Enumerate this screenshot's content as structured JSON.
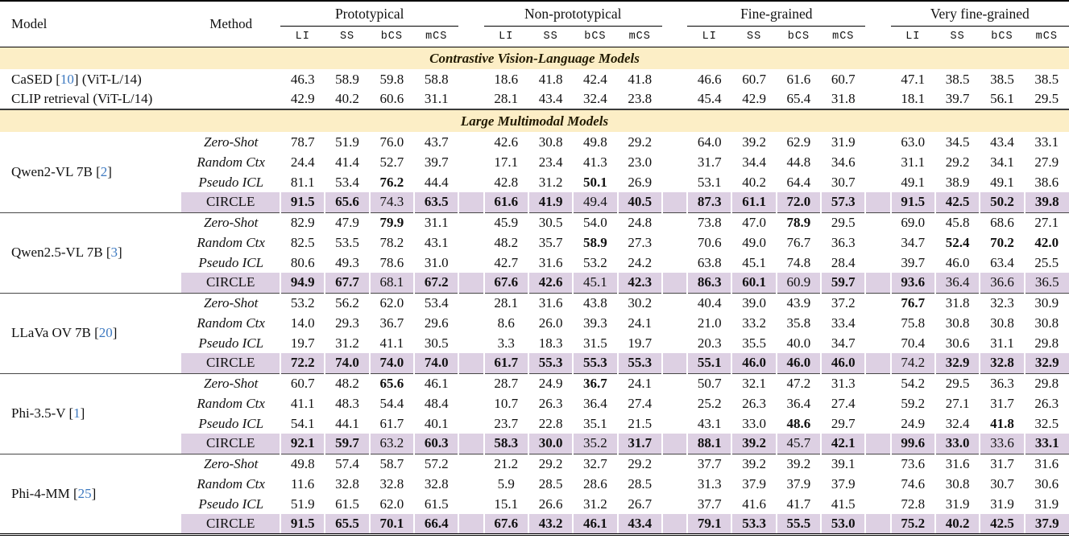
{
  "colors": {
    "section_band": "#FCEEC6",
    "circle_band": "#DDD0E3",
    "cite_blue": "#3D79C0"
  },
  "table": {
    "model_header": "Model",
    "method_header": "Method",
    "groups": [
      {
        "label": "Prototypical"
      },
      {
        "label": "Non-prototypical"
      },
      {
        "label": "Fine-grained"
      },
      {
        "label": "Very fine-grained"
      }
    ],
    "subcols": [
      "LI",
      "SS",
      "bCS",
      "mCS"
    ],
    "sections": [
      {
        "title": "Contrastive Vision-Language Models",
        "blocks": [
          {
            "model_pre": "CaSED [",
            "model_cite": "10",
            "model_post": "] (ViT-L/14)",
            "rows": [
              {
                "method": "",
                "italic": false,
                "circle": false,
                "values": [
                  "46.3",
                  "58.9",
                  "59.8",
                  "58.8",
                  "18.6",
                  "41.8",
                  "42.4",
                  "41.8",
                  "46.6",
                  "60.7",
                  "61.6",
                  "60.7",
                  "47.1",
                  "38.5",
                  "38.5",
                  "38.5"
                ],
                "bold": []
              }
            ]
          },
          {
            "model_pre": "CLIP retrieval (ViT-L/14)",
            "model_cite": "",
            "model_post": "",
            "rows": [
              {
                "method": "",
                "italic": false,
                "circle": false,
                "values": [
                  "42.9",
                  "40.2",
                  "60.6",
                  "31.1",
                  "28.1",
                  "43.4",
                  "32.4",
                  "23.8",
                  "45.4",
                  "42.9",
                  "65.4",
                  "31.8",
                  "18.1",
                  "39.7",
                  "56.1",
                  "29.5"
                ],
                "bold": []
              }
            ]
          }
        ]
      },
      {
        "title": "Large Multimodal Models",
        "blocks": [
          {
            "model_pre": "Qwen2-VL 7B [",
            "model_cite": "2",
            "model_post": "]",
            "rows": [
              {
                "method": "Zero-Shot",
                "italic": true,
                "circle": false,
                "values": [
                  "78.7",
                  "51.9",
                  "76.0",
                  "43.7",
                  "42.6",
                  "30.8",
                  "49.8",
                  "29.2",
                  "64.0",
                  "39.2",
                  "62.9",
                  "31.9",
                  "63.0",
                  "34.5",
                  "43.4",
                  "33.1"
                ],
                "bold": []
              },
              {
                "method": "Random Ctx",
                "italic": true,
                "circle": false,
                "values": [
                  "24.4",
                  "41.4",
                  "52.7",
                  "39.7",
                  "17.1",
                  "23.4",
                  "41.3",
                  "23.0",
                  "31.7",
                  "34.4",
                  "44.8",
                  "34.6",
                  "31.1",
                  "29.2",
                  "34.1",
                  "27.9"
                ],
                "bold": []
              },
              {
                "method": "Pseudo ICL",
                "italic": true,
                "circle": false,
                "values": [
                  "81.1",
                  "53.4",
                  "76.2",
                  "44.4",
                  "42.8",
                  "31.2",
                  "50.1",
                  "26.9",
                  "53.1",
                  "40.2",
                  "64.4",
                  "30.7",
                  "49.1",
                  "38.9",
                  "49.1",
                  "38.6"
                ],
                "bold": [
                  2,
                  6
                ]
              },
              {
                "method": "CIRCLE",
                "italic": false,
                "circle": true,
                "values": [
                  "91.5",
                  "65.6",
                  "74.3",
                  "63.5",
                  "61.6",
                  "41.9",
                  "49.4",
                  "40.5",
                  "87.3",
                  "61.1",
                  "72.0",
                  "57.3",
                  "91.5",
                  "42.5",
                  "50.2",
                  "39.8"
                ],
                "bold": [
                  0,
                  1,
                  3,
                  4,
                  5,
                  7,
                  8,
                  9,
                  10,
                  11,
                  12,
                  13,
                  14,
                  15
                ]
              }
            ]
          },
          {
            "model_pre": "Qwen2.5-VL 7B [",
            "model_cite": "3",
            "model_post": "]",
            "rows": [
              {
                "method": "Zero-Shot",
                "italic": true,
                "circle": false,
                "values": [
                  "82.9",
                  "47.9",
                  "79.9",
                  "31.1",
                  "45.9",
                  "30.5",
                  "54.0",
                  "24.8",
                  "73.8",
                  "47.0",
                  "78.9",
                  "29.5",
                  "69.0",
                  "45.8",
                  "68.6",
                  "27.1"
                ],
                "bold": [
                  2,
                  10
                ]
              },
              {
                "method": "Random Ctx",
                "italic": true,
                "circle": false,
                "values": [
                  "82.5",
                  "53.5",
                  "78.2",
                  "43.1",
                  "48.2",
                  "35.7",
                  "58.9",
                  "27.3",
                  "70.6",
                  "49.0",
                  "76.7",
                  "36.3",
                  "34.7",
                  "52.4",
                  "70.2",
                  "42.0"
                ],
                "bold": [
                  6,
                  13,
                  14,
                  15
                ]
              },
              {
                "method": "Pseudo ICL",
                "italic": true,
                "circle": false,
                "values": [
                  "80.6",
                  "49.3",
                  "78.6",
                  "31.0",
                  "42.7",
                  "31.6",
                  "53.2",
                  "24.2",
                  "63.8",
                  "45.1",
                  "74.8",
                  "28.4",
                  "39.7",
                  "46.0",
                  "63.4",
                  "25.5"
                ],
                "bold": []
              },
              {
                "method": "CIRCLE",
                "italic": false,
                "circle": true,
                "values": [
                  "94.9",
                  "67.7",
                  "68.1",
                  "67.2",
                  "67.6",
                  "42.6",
                  "45.1",
                  "42.3",
                  "86.3",
                  "60.1",
                  "60.9",
                  "59.7",
                  "93.6",
                  "36.4",
                  "36.6",
                  "36.5"
                ],
                "bold": [
                  0,
                  1,
                  3,
                  4,
                  5,
                  7,
                  8,
                  9,
                  11,
                  12
                ]
              }
            ]
          },
          {
            "model_pre": "LLaVa OV 7B [",
            "model_cite": "20",
            "model_post": "]",
            "rows": [
              {
                "method": "Zero-Shot",
                "italic": true,
                "circle": false,
                "values": [
                  "53.2",
                  "56.2",
                  "62.0",
                  "53.4",
                  "28.1",
                  "31.6",
                  "43.8",
                  "30.2",
                  "40.4",
                  "39.0",
                  "43.9",
                  "37.2",
                  "76.7",
                  "31.8",
                  "32.3",
                  "30.9"
                ],
                "bold": [
                  12
                ]
              },
              {
                "method": "Random Ctx",
                "italic": true,
                "circle": false,
                "values": [
                  "14.0",
                  "29.3",
                  "36.7",
                  "29.6",
                  "8.6",
                  "26.0",
                  "39.3",
                  "24.1",
                  "21.0",
                  "33.2",
                  "35.8",
                  "33.4",
                  "75.8",
                  "30.8",
                  "30.8",
                  "30.8"
                ],
                "bold": []
              },
              {
                "method": "Pseudo ICL",
                "italic": true,
                "circle": false,
                "values": [
                  "19.7",
                  "31.2",
                  "41.1",
                  "30.5",
                  "3.3",
                  "18.3",
                  "31.5",
                  "19.7",
                  "20.3",
                  "35.5",
                  "40.0",
                  "34.7",
                  "70.4",
                  "30.6",
                  "31.1",
                  "29.8"
                ],
                "bold": []
              },
              {
                "method": "CIRCLE",
                "italic": false,
                "circle": true,
                "values": [
                  "72.2",
                  "74.0",
                  "74.0",
                  "74.0",
                  "61.7",
                  "55.3",
                  "55.3",
                  "55.3",
                  "55.1",
                  "46.0",
                  "46.0",
                  "46.0",
                  "74.2",
                  "32.9",
                  "32.8",
                  "32.9"
                ],
                "bold": [
                  0,
                  1,
                  2,
                  3,
                  4,
                  5,
                  6,
                  7,
                  8,
                  9,
                  10,
                  11,
                  13,
                  14,
                  15
                ]
              }
            ]
          },
          {
            "model_pre": "Phi-3.5-V [",
            "model_cite": "1",
            "model_post": "]",
            "rows": [
              {
                "method": "Zero-Shot",
                "italic": true,
                "circle": false,
                "values": [
                  "60.7",
                  "48.2",
                  "65.6",
                  "46.1",
                  "28.7",
                  "24.9",
                  "36.7",
                  "24.1",
                  "50.7",
                  "32.1",
                  "47.2",
                  "31.3",
                  "54.2",
                  "29.5",
                  "36.3",
                  "29.8"
                ],
                "bold": [
                  2,
                  6
                ]
              },
              {
                "method": "Random Ctx",
                "italic": true,
                "circle": false,
                "values": [
                  "41.1",
                  "48.3",
                  "54.4",
                  "48.4",
                  "10.7",
                  "26.3",
                  "36.4",
                  "27.4",
                  "25.2",
                  "26.3",
                  "36.4",
                  "27.4",
                  "59.2",
                  "27.1",
                  "31.7",
                  "26.3"
                ],
                "bold": []
              },
              {
                "method": "Pseudo ICL",
                "italic": true,
                "circle": false,
                "values": [
                  "54.1",
                  "44.1",
                  "61.7",
                  "40.1",
                  "23.7",
                  "22.8",
                  "35.1",
                  "21.5",
                  "43.1",
                  "33.0",
                  "48.6",
                  "29.7",
                  "24.9",
                  "32.4",
                  "41.8",
                  "32.5"
                ],
                "bold": [
                  10,
                  14
                ]
              },
              {
                "method": "CIRCLE",
                "italic": false,
                "circle": true,
                "values": [
                  "92.1",
                  "59.7",
                  "63.2",
                  "60.3",
                  "58.3",
                  "30.0",
                  "35.2",
                  "31.7",
                  "88.1",
                  "39.2",
                  "45.7",
                  "42.1",
                  "99.6",
                  "33.0",
                  "33.6",
                  "33.1"
                ],
                "bold": [
                  0,
                  1,
                  3,
                  4,
                  5,
                  7,
                  8,
                  9,
                  11,
                  12,
                  13,
                  15
                ]
              }
            ]
          },
          {
            "model_pre": "Phi-4-MM [",
            "model_cite": "25",
            "model_post": "]",
            "rows": [
              {
                "method": "Zero-Shot",
                "italic": true,
                "circle": false,
                "values": [
                  "49.8",
                  "57.4",
                  "58.7",
                  "57.2",
                  "21.2",
                  "29.2",
                  "32.7",
                  "29.2",
                  "37.7",
                  "39.2",
                  "39.2",
                  "39.1",
                  "73.6",
                  "31.6",
                  "31.7",
                  "31.6"
                ],
                "bold": []
              },
              {
                "method": "Random Ctx",
                "italic": true,
                "circle": false,
                "values": [
                  "11.6",
                  "32.8",
                  "32.8",
                  "32.8",
                  "5.9",
                  "28.5",
                  "28.6",
                  "28.5",
                  "31.3",
                  "37.9",
                  "37.9",
                  "37.9",
                  "74.6",
                  "30.8",
                  "30.7",
                  "30.6"
                ],
                "bold": []
              },
              {
                "method": "Pseudo ICL",
                "italic": true,
                "circle": false,
                "values": [
                  "51.9",
                  "61.5",
                  "62.0",
                  "61.5",
                  "15.1",
                  "26.6",
                  "31.2",
                  "26.7",
                  "37.7",
                  "41.6",
                  "41.7",
                  "41.5",
                  "72.8",
                  "31.9",
                  "31.9",
                  "31.9"
                ],
                "bold": []
              },
              {
                "method": "CIRCLE",
                "italic": false,
                "circle": true,
                "values": [
                  "91.5",
                  "65.5",
                  "70.1",
                  "66.4",
                  "67.6",
                  "43.2",
                  "46.1",
                  "43.4",
                  "79.1",
                  "53.3",
                  "55.5",
                  "53.0",
                  "75.2",
                  "40.2",
                  "42.5",
                  "37.9"
                ],
                "bold": [
                  0,
                  1,
                  2,
                  3,
                  4,
                  5,
                  6,
                  7,
                  8,
                  9,
                  10,
                  11,
                  12,
                  13,
                  14,
                  15
                ]
              }
            ]
          }
        ]
      }
    ]
  }
}
